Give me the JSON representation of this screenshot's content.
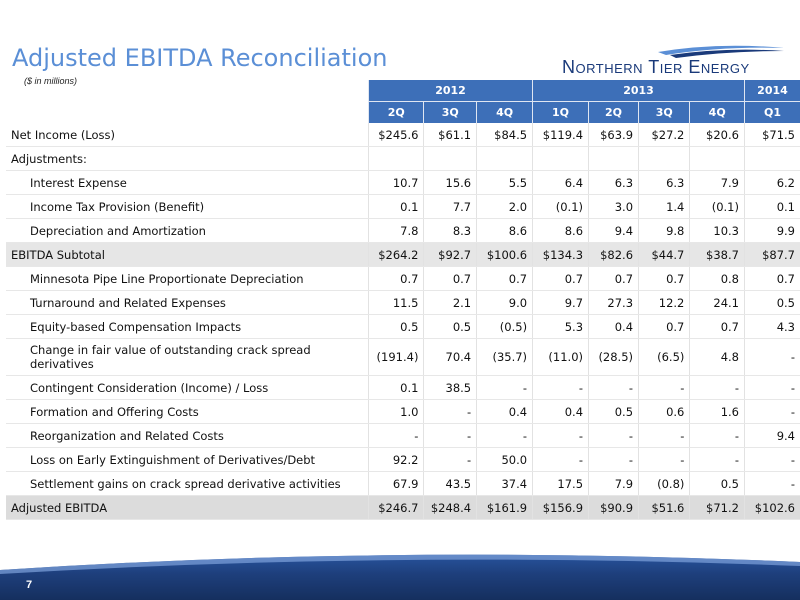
{
  "title": "Adjusted EBITDA Reconciliation",
  "subtitle": "($ in millions)",
  "logo_text": "Northern Tier Energy",
  "page_number": "7",
  "years": [
    {
      "label": "2012"
    },
    {
      "label": "2013"
    },
    {
      "label": "2014"
    }
  ],
  "quarters": [
    "2Q",
    "3Q",
    "4Q",
    "1Q",
    "2Q",
    "3Q",
    "4Q",
    "Q1"
  ],
  "rows": [
    {
      "label": "Net Income (Loss)",
      "values": [
        "$245.6",
        "$61.1",
        "$84.5",
        "$119.4",
        "$63.9",
        "$27.2",
        "$20.6",
        "$71.5"
      ]
    },
    {
      "label": "Adjustments:",
      "values": [
        "",
        "",
        "",
        "",
        "",
        "",
        "",
        ""
      ]
    },
    {
      "label": "Interest Expense",
      "values": [
        "10.7",
        "15.6",
        "5.5",
        "6.4",
        "6.3",
        "6.3",
        "7.9",
        "6.2"
      ]
    },
    {
      "label": "Income Tax Provision (Benefit)",
      "values": [
        "0.1",
        "7.7",
        "2.0",
        "(0.1)",
        "3.0",
        "1.4",
        "(0.1)",
        "0.1"
      ]
    },
    {
      "label": "Depreciation and Amortization",
      "values": [
        "7.8",
        "8.3",
        "8.6",
        "8.6",
        "9.4",
        "9.8",
        "10.3",
        "9.9"
      ]
    },
    {
      "label": "EBITDA Subtotal",
      "values": [
        "$264.2",
        "$92.7",
        "$100.6",
        "$134.3",
        "$82.6",
        "$44.7",
        "$38.7",
        "$87.7"
      ]
    },
    {
      "label": "Minnesota Pipe Line Proportionate Depreciation",
      "values": [
        "0.7",
        "0.7",
        "0.7",
        "0.7",
        "0.7",
        "0.7",
        "0.8",
        "0.7"
      ]
    },
    {
      "label": "Turnaround and Related Expenses",
      "values": [
        "11.5",
        "2.1",
        "9.0",
        "9.7",
        "27.3",
        "12.2",
        "24.1",
        "0.5"
      ]
    },
    {
      "label": "Equity-based Compensation Impacts",
      "values": [
        "0.5",
        "0.5",
        "(0.5)",
        "5.3",
        "0.4",
        "0.7",
        "0.7",
        "4.3"
      ]
    },
    {
      "label": "Change in fair value of outstanding  crack spread derivatives",
      "values": [
        "(191.4)",
        "70.4",
        "(35.7)",
        "(11.0)",
        "(28.5)",
        "(6.5)",
        "4.8",
        "-"
      ]
    },
    {
      "label": "Contingent Consideration (Income) / Loss",
      "values": [
        "0.1",
        "38.5",
        "-",
        "-",
        "-",
        "-",
        "-",
        "-"
      ]
    },
    {
      "label": "Formation and Offering Costs",
      "values": [
        "1.0",
        "-",
        "0.4",
        "0.4",
        "0.5",
        "0.6",
        "1.6",
        "-"
      ]
    },
    {
      "label": "Reorganization and Related Costs",
      "values": [
        "-",
        "-",
        "-",
        "-",
        "-",
        "-",
        "-",
        "9.4"
      ]
    },
    {
      "label": "Loss on Early Extinguishment of Derivatives/Debt",
      "values": [
        "92.2",
        "-",
        "50.0",
        "-",
        "-",
        "-",
        "-",
        "-"
      ]
    },
    {
      "label": "Settlement gains on crack spread derivative activities",
      "values": [
        "67.9",
        "43.5",
        "37.4",
        "17.5",
        "7.9",
        "(0.8)",
        "0.5",
        "-"
      ]
    },
    {
      "label": "Adjusted EBITDA",
      "values": [
        "$246.7",
        "$248.4",
        "$161.9",
        "$156.9",
        "$90.9",
        "$51.6",
        "$71.2",
        "$102.6"
      ]
    }
  ],
  "colors": {
    "header_bg": "#3d6fb8",
    "title": "#5b8fd6",
    "subtotal_bg": "#e6e6e6",
    "footer": "#1f3f7a"
  }
}
